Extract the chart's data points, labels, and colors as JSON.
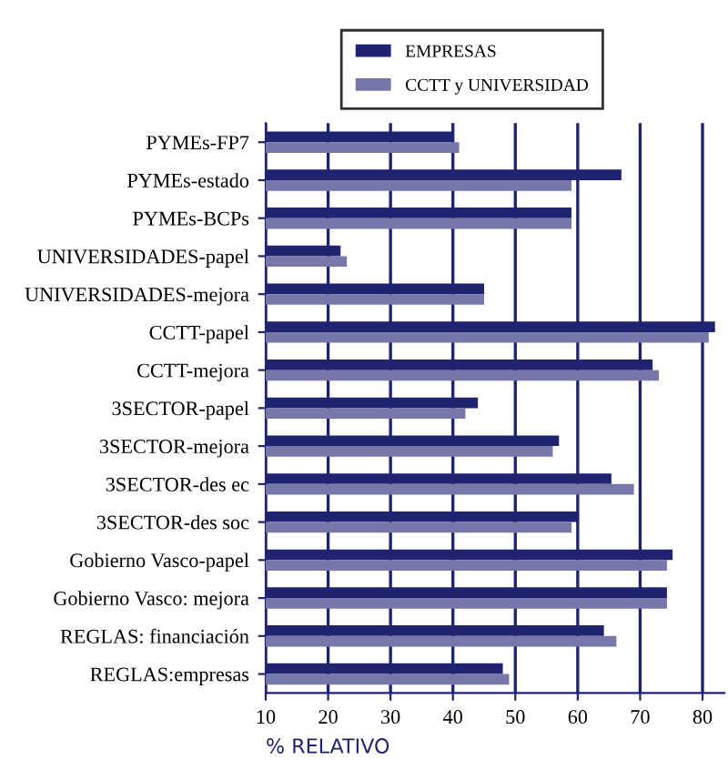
{
  "chart_data": {
    "type": "bar",
    "orientation": "horizontal",
    "xlabel": "% RELATIVO",
    "categories": [
      "PYMEs-FP7",
      "PYMEs-estado",
      "PYMEs-BCPs",
      "UNIVERSIDADES-papel",
      "UNIVERSIDADES-mejora",
      "CCTT-papel",
      "CCTT-mejora",
      "3SECTOR-papel",
      "3SECTOR-mejora",
      "3SECTOR-des ec",
      "3SECTOR-des soc",
      "Gobierno Vasco-papel",
      "Gobierno Vasco: mejora",
      "REGLAS: financiación",
      "REGLAS:empresas"
    ],
    "series": [
      {
        "name": "EMPRESAS",
        "color": "#1f2370",
        "values": [
          40,
          67,
          59,
          22,
          45,
          82,
          72,
          44,
          57,
          65.4,
          60,
          75.2,
          74.3,
          64.2,
          48
        ]
      },
      {
        "name": "CCTT y UNIVERSIDAD",
        "color": "#7777aa",
        "values": [
          41,
          59,
          59,
          23,
          45,
          81,
          73,
          42,
          56,
          69,
          59,
          74.3,
          74.3,
          66.2,
          49
        ]
      }
    ],
    "xlim": [
      10,
      83.5
    ],
    "xticks": [
      10,
      20,
      30,
      40,
      50,
      60,
      70,
      80
    ],
    "grid": "x",
    "legend": "top"
  }
}
